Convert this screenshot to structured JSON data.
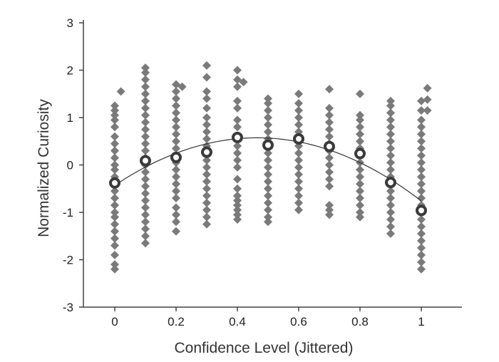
{
  "chart_data": {
    "type": "scatter",
    "title": "",
    "xlabel": "Confidence Level (Jittered)",
    "ylabel": "Normalized Curiosity",
    "xlim": [
      -0.1,
      1.1
    ],
    "ylim": [
      -3,
      3
    ],
    "xticks": [
      0,
      0.2,
      0.4,
      0.6,
      0.8,
      1
    ],
    "xtick_labels": [
      "0",
      "0.2",
      "0.4",
      "0.6",
      "0.8",
      "1"
    ],
    "yticks": [
      -3,
      -2,
      -1,
      0,
      1,
      2,
      3
    ],
    "ytick_labels": [
      "-3",
      "-2",
      "-1",
      "0",
      "1",
      "2",
      "3"
    ],
    "grid": false,
    "legend": "none",
    "colors": {
      "points": "#7a7a7a",
      "means": "#3a3a3a",
      "fit": "#333333",
      "axis": "#444444"
    },
    "series": [
      {
        "kind": "individual-points",
        "marker": "diamond",
        "groups": [
          {
            "x": 0.0,
            "y": [
              1.25,
              1.15,
              1.05,
              0.95,
              0.8,
              0.6,
              0.45,
              0.3,
              0.15,
              0.0,
              -0.1,
              -0.25,
              -0.4,
              -0.55,
              -0.7,
              -0.85,
              -1.0,
              -1.1,
              -1.25,
              -1.4,
              -1.55,
              -1.7,
              -1.9,
              -2.1,
              -2.2
            ]
          },
          {
            "x": 0.02,
            "y": [
              1.55
            ]
          },
          {
            "x": 0.1,
            "y": [
              2.05,
              1.95,
              1.8,
              1.65,
              1.5,
              1.35,
              1.2,
              1.05,
              0.9,
              0.75,
              0.6,
              0.45,
              0.3,
              0.15,
              0.0,
              -0.15,
              -0.3,
              -0.45,
              -0.6,
              -0.75,
              -0.9,
              -1.05,
              -1.2,
              -1.35,
              -1.5,
              -1.65
            ]
          },
          {
            "x": 0.2,
            "y": [
              1.7,
              1.55,
              1.4,
              1.25,
              1.1,
              0.95,
              0.8,
              0.65,
              0.5,
              0.35,
              0.2,
              0.05,
              -0.1,
              -0.25,
              -0.4,
              -0.55,
              -0.7,
              -0.9,
              -1.05,
              -1.2,
              -1.4
            ]
          },
          {
            "x": 0.22,
            "y": [
              1.65
            ]
          },
          {
            "x": 0.3,
            "y": [
              2.1,
              1.85,
              1.55,
              1.4,
              1.2,
              1.0,
              0.85,
              0.7,
              0.55,
              0.4,
              0.25,
              0.1,
              -0.05,
              -0.2,
              -0.35,
              -0.5,
              -0.65,
              -0.8,
              -0.95,
              -1.1,
              -1.25
            ]
          },
          {
            "x": 0.4,
            "y": [
              2.0,
              1.8,
              1.65,
              1.35,
              1.2,
              0.95,
              0.8,
              0.6,
              0.4,
              0.25,
              0.1,
              -0.05,
              -0.3,
              -0.5,
              -0.65,
              -0.75,
              -0.85,
              -0.95,
              -1.05,
              -1.15
            ]
          },
          {
            "x": 0.42,
            "y": [
              1.75
            ]
          },
          {
            "x": 0.5,
            "y": [
              1.4,
              1.3,
              1.15,
              1.0,
              0.85,
              0.7,
              0.55,
              0.4,
              0.25,
              0.1,
              -0.05,
              -0.2,
              -0.35,
              -0.5,
              -0.65,
              -0.8,
              -0.95,
              -1.1,
              -1.2
            ]
          },
          {
            "x": 0.6,
            "y": [
              1.5,
              1.3,
              1.15,
              1.0,
              0.85,
              0.7,
              0.55,
              0.4,
              0.25,
              0.1,
              -0.05,
              -0.2,
              -0.35,
              -0.5,
              -0.65,
              -0.8,
              -0.95
            ]
          },
          {
            "x": 0.7,
            "y": [
              1.6,
              1.2,
              1.05,
              0.9,
              0.75,
              0.6,
              0.45,
              0.3,
              0.15,
              0.0,
              -0.15,
              -0.3,
              -0.45,
              -0.85,
              -0.95,
              -1.05
            ]
          },
          {
            "x": 0.8,
            "y": [
              1.5,
              1.05,
              0.95,
              0.8,
              0.65,
              0.5,
              0.35,
              0.2,
              0.05,
              -0.1,
              -0.25,
              -0.4,
              -0.55,
              -0.7,
              -0.85,
              -1.0,
              -1.1
            ]
          },
          {
            "x": 0.9,
            "y": [
              1.35,
              1.25,
              1.1,
              0.95,
              0.8,
              0.65,
              0.5,
              0.35,
              0.2,
              0.05,
              -0.1,
              -0.25,
              -0.4,
              -0.55,
              -0.7,
              -0.85,
              -1.0,
              -1.15,
              -1.3,
              -1.45
            ]
          },
          {
            "x": 1.0,
            "y": [
              1.35,
              1.15,
              0.95,
              0.8,
              0.65,
              0.5,
              0.35,
              0.2,
              0.05,
              -0.1,
              -0.25,
              -0.4,
              -0.55,
              -0.7,
              -0.85,
              -1.0,
              -1.15,
              -1.3,
              -1.45,
              -1.6,
              -1.75,
              -1.9,
              -2.05,
              -2.2
            ]
          },
          {
            "x": 1.02,
            "y": [
              1.62,
              1.38,
              1.15
            ]
          }
        ]
      },
      {
        "kind": "group-means",
        "marker": "open-circle",
        "points": [
          {
            "x": 0.0,
            "y": -0.38
          },
          {
            "x": 0.1,
            "y": 0.09
          },
          {
            "x": 0.2,
            "y": 0.16
          },
          {
            "x": 0.3,
            "y": 0.27
          },
          {
            "x": 0.4,
            "y": 0.58
          },
          {
            "x": 0.5,
            "y": 0.42
          },
          {
            "x": 0.6,
            "y": 0.55
          },
          {
            "x": 0.7,
            "y": 0.39
          },
          {
            "x": 0.8,
            "y": 0.24
          },
          {
            "x": 0.9,
            "y": -0.37
          },
          {
            "x": 1.0,
            "y": -0.96
          }
        ]
      },
      {
        "kind": "quadratic-fit",
        "coefficients": {
          "a": -4.65,
          "b": 4.32,
          "c": -0.43
        }
      }
    ]
  }
}
